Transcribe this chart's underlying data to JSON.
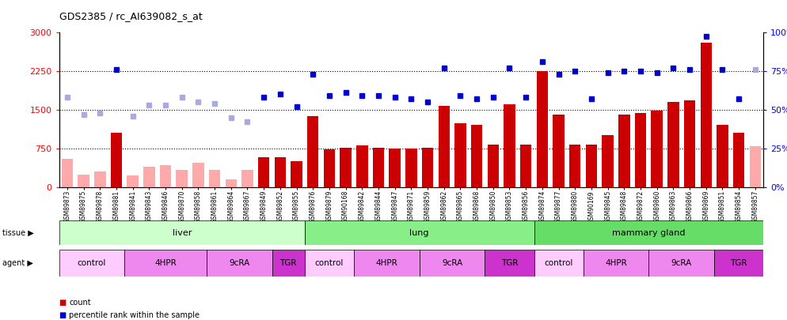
{
  "title": "GDS2385 / rc_AI639082_s_at",
  "samples": [
    "GSM89873",
    "GSM89875",
    "GSM89878",
    "GSM89881",
    "GSM89841",
    "GSM89843",
    "GSM89846",
    "GSM89870",
    "GSM89858",
    "GSM89861",
    "GSM89864",
    "GSM89867",
    "GSM89849",
    "GSM89852",
    "GSM89855",
    "GSM89876",
    "GSM89879",
    "GSM90168",
    "GSM89842",
    "GSM89844",
    "GSM89847",
    "GSM89871",
    "GSM89859",
    "GSM89862",
    "GSM89865",
    "GSM89868",
    "GSM89850",
    "GSM89853",
    "GSM89856",
    "GSM89874",
    "GSM89877",
    "GSM89880",
    "GSM90169",
    "GSM89845",
    "GSM89848",
    "GSM89872",
    "GSM89860",
    "GSM89863",
    "GSM89866",
    "GSM89869",
    "GSM89851",
    "GSM89854",
    "GSM89857"
  ],
  "bar_values": [
    550,
    250,
    300,
    1050,
    230,
    390,
    430,
    330,
    470,
    330,
    150,
    340,
    580,
    580,
    500,
    1380,
    730,
    760,
    810,
    760,
    740,
    740,
    760,
    1570,
    1240,
    1200,
    820,
    1600,
    830,
    2250,
    1400,
    820,
    830,
    1010,
    1400,
    1430,
    1480,
    1650,
    1680,
    2800,
    1200,
    1050,
    800
  ],
  "bar_absent": [
    true,
    true,
    true,
    false,
    true,
    true,
    true,
    true,
    true,
    true,
    true,
    true,
    false,
    false,
    false,
    false,
    false,
    false,
    false,
    false,
    false,
    false,
    false,
    false,
    false,
    false,
    false,
    false,
    false,
    false,
    false,
    false,
    false,
    false,
    false,
    false,
    false,
    false,
    false,
    false,
    false,
    false,
    true
  ],
  "percentile_values": [
    58,
    47,
    48,
    76,
    46,
    53,
    53,
    58,
    55,
    54,
    45,
    42,
    58,
    60,
    52,
    73,
    59,
    61,
    59,
    59,
    58,
    57,
    55,
    77,
    59,
    57,
    58,
    77,
    58,
    81,
    73,
    75,
    57,
    74,
    75,
    75,
    74,
    77,
    76,
    97,
    76,
    57,
    76
  ],
  "percentile_absent": [
    true,
    true,
    true,
    false,
    true,
    true,
    true,
    true,
    true,
    true,
    true,
    true,
    false,
    false,
    false,
    false,
    false,
    false,
    false,
    false,
    false,
    false,
    false,
    false,
    false,
    false,
    false,
    false,
    false,
    false,
    false,
    false,
    false,
    false,
    false,
    false,
    false,
    false,
    false,
    false,
    false,
    false,
    true
  ],
  "ylim_left": [
    0,
    3000
  ],
  "ylim_right": [
    0,
    100
  ],
  "yticks_left": [
    0,
    750,
    1500,
    2250,
    3000
  ],
  "yticks_right": [
    0,
    25,
    50,
    75,
    100
  ],
  "color_bar_present": "#cc0000",
  "color_bar_absent": "#ffaaaa",
  "color_dot_present": "#0000cc",
  "color_dot_absent": "#aaaadd",
  "tissue_groups": [
    {
      "label": "liver",
      "start": 0,
      "end": 14,
      "color": "#ccffcc"
    },
    {
      "label": "lung",
      "start": 15,
      "end": 28,
      "color": "#88ee88"
    },
    {
      "label": "mammary gland",
      "start": 29,
      "end": 42,
      "color": "#66dd66"
    }
  ],
  "agent_groups": [
    {
      "label": "control",
      "start": 0,
      "end": 3,
      "color": "#ffccff"
    },
    {
      "label": "4HPR",
      "start": 4,
      "end": 8,
      "color": "#ee88ee"
    },
    {
      "label": "9cRA",
      "start": 9,
      "end": 12,
      "color": "#ee88ee"
    },
    {
      "label": "TGR",
      "start": 13,
      "end": 14,
      "color": "#cc33cc"
    },
    {
      "label": "control",
      "start": 15,
      "end": 17,
      "color": "#ffccff"
    },
    {
      "label": "4HPR",
      "start": 18,
      "end": 21,
      "color": "#ee88ee"
    },
    {
      "label": "9cRA",
      "start": 22,
      "end": 25,
      "color": "#ee88ee"
    },
    {
      "label": "TGR",
      "start": 26,
      "end": 28,
      "color": "#cc33cc"
    },
    {
      "label": "control",
      "start": 29,
      "end": 31,
      "color": "#ffccff"
    },
    {
      "label": "4HPR",
      "start": 32,
      "end": 35,
      "color": "#ee88ee"
    },
    {
      "label": "9cRA",
      "start": 36,
      "end": 39,
      "color": "#ee88ee"
    },
    {
      "label": "TGR",
      "start": 40,
      "end": 42,
      "color": "#cc33cc"
    }
  ],
  "bg_color": "#ffffff"
}
